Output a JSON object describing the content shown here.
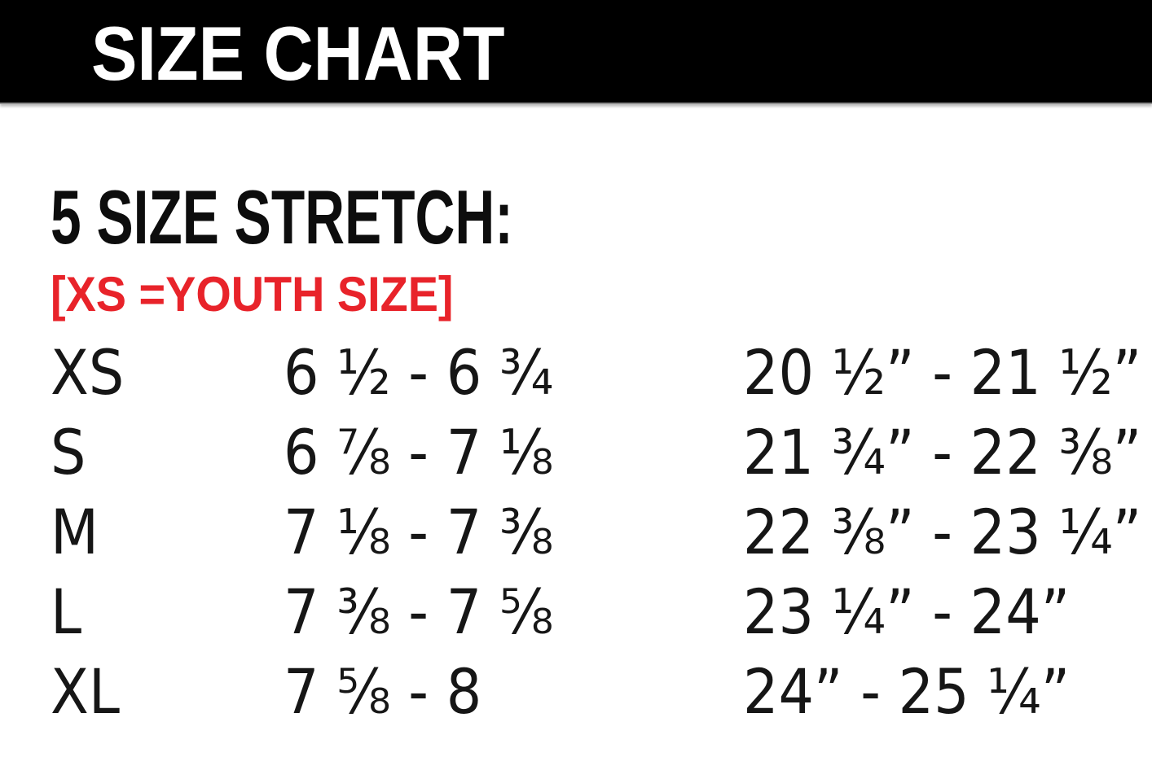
{
  "header": {
    "title": "SIZE CHART",
    "bg_color": "#000000",
    "text_color": "#ffffff"
  },
  "section": {
    "heading": "5 SIZE STRETCH:",
    "note": "[XS =YOUTH SIZE]",
    "note_color": "#e8232a"
  },
  "table": {
    "columns": [
      "size",
      "hat_size_range",
      "head_circumference_range"
    ],
    "rows": [
      {
        "size": "XS",
        "hat_size": "6 ½ - 6 ¾",
        "head_measure": "20 ½” - 21 ½”"
      },
      {
        "size": "S",
        "hat_size": "6 ⅞ - 7 ⅛",
        "head_measure": "21 ¾” - 22 ⅜”"
      },
      {
        "size": "M",
        "hat_size": "7 ⅛ - 7 ⅜",
        "head_measure": "22 ⅜” - 23 ¼”"
      },
      {
        "size": "L",
        "hat_size": "7 ⅜ - 7 ⅝",
        "head_measure": "23 ¼” - 24”"
      },
      {
        "size": "XL",
        "hat_size": "7 ⅝ - 8",
        "head_measure": "24” - 25 ¼”"
      }
    ]
  }
}
